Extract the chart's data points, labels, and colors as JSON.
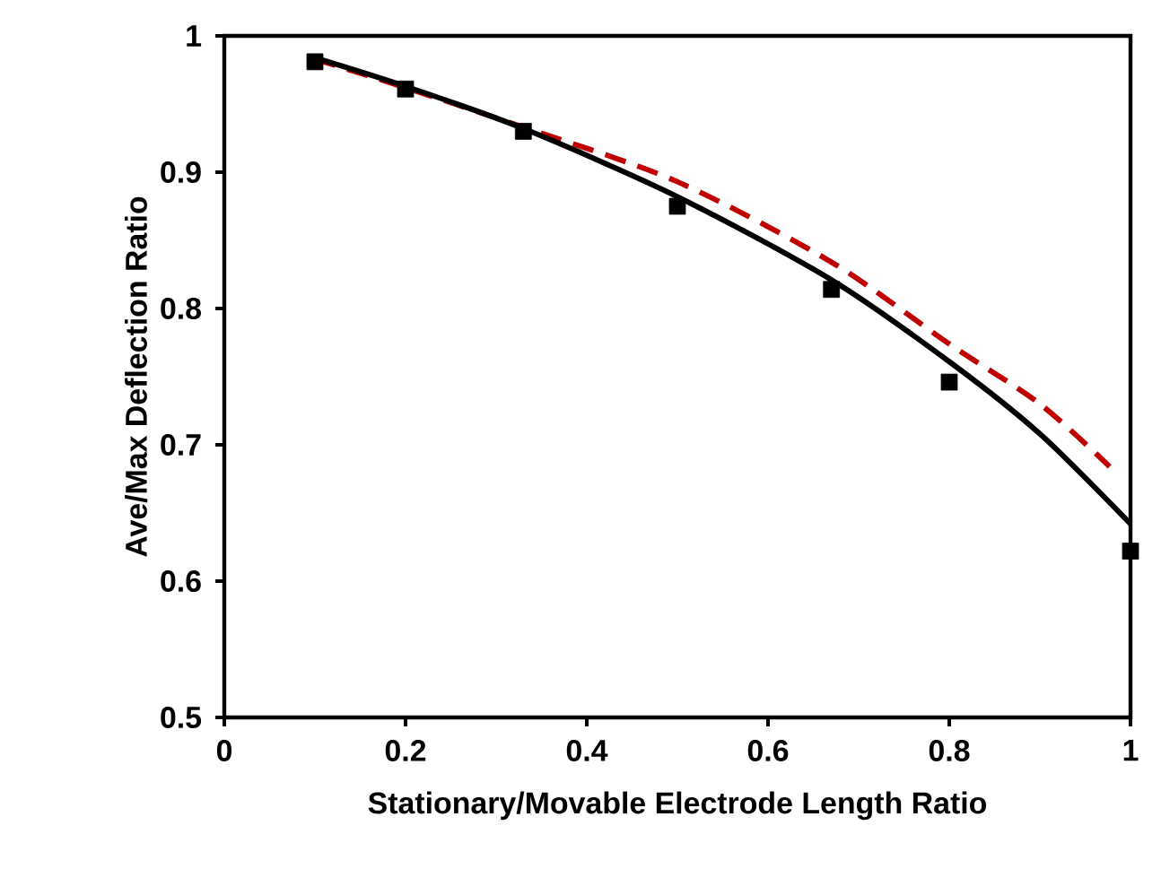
{
  "chart_data": {
    "type": "line",
    "xlabel": "Stationary/Movable Electrode Length Ratio",
    "ylabel": "Ave/Max  Deflection Ratio",
    "xlim": [
      0,
      1
    ],
    "ylim": [
      0.5,
      1
    ],
    "xticks": [
      0,
      0.2,
      0.4,
      0.6,
      0.8,
      1
    ],
    "yticks": [
      0.5,
      0.6,
      0.7,
      0.8,
      0.9,
      1
    ],
    "series": [
      {
        "color": "#c00000",
        "line_style": "dashed",
        "marker": "none",
        "x": [
          0.1,
          0.2,
          0.33,
          0.5,
          0.67,
          0.8,
          0.9,
          0.977
        ],
        "values": [
          0.983,
          0.962,
          0.933,
          0.893,
          0.834,
          0.774,
          0.73,
          0.684
        ]
      },
      {
        "color": "#000000",
        "line_style": "solid",
        "marker": "none",
        "x": [
          0.1,
          0.2,
          0.33,
          0.5,
          0.67,
          0.8,
          0.9,
          1
        ],
        "values": [
          0.984,
          0.963,
          0.932,
          0.882,
          0.821,
          0.761,
          0.708,
          0.642
        ]
      },
      {
        "type": "scatter",
        "color": "#000000",
        "marker": "square",
        "x": [
          0.1,
          0.2,
          0.33,
          0.5,
          0.67,
          0.8,
          1
        ],
        "values": [
          0.981,
          0.961,
          0.93,
          0.875,
          0.814,
          0.746,
          0.622
        ]
      }
    ]
  }
}
